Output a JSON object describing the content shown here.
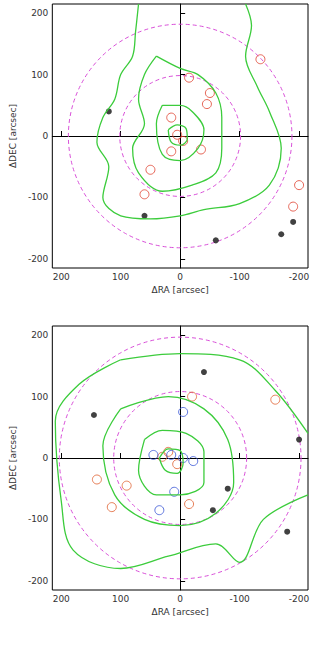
{
  "chart_data": [
    {
      "type": "scatter",
      "x_label": "ΔRA [arcsec]",
      "y_label": "ΔDEC [arcsec]",
      "xlim": [
        215,
        -215
      ],
      "ylim": [
        -215,
        215
      ],
      "xticks": [
        200,
        100,
        0,
        -100,
        -200
      ],
      "yticks": [
        -200,
        -100,
        0,
        100,
        200
      ],
      "grid": false,
      "series": [
        {
          "type": "circle",
          "color": "#d94fd9",
          "line_style": "dashed",
          "center": [
            0,
            0
          ],
          "radius": 100
        },
        {
          "type": "circle",
          "color": "#d94fd9",
          "line_style": "dashed",
          "center": [
            0,
            0
          ],
          "radius": 185
        },
        {
          "type": "line",
          "color": "#3ccc3c",
          "line_style": "solid",
          "points": [
            [
              70,
              215
            ],
            [
              75,
              170
            ],
            [
              80,
              130
            ],
            [
              100,
              100
            ],
            [
              110,
              60
            ],
            [
              130,
              30
            ],
            [
              140,
              -10
            ],
            [
              120,
              -50
            ],
            [
              130,
              -100
            ],
            [
              100,
              -130
            ],
            [
              50,
              -135
            ],
            [
              0,
              -130
            ],
            [
              -40,
              -120
            ],
            [
              -100,
              -110
            ],
            [
              -150,
              -80
            ],
            [
              -170,
              -20
            ],
            [
              -150,
              40
            ],
            [
              -130,
              80
            ],
            [
              -110,
              130
            ],
            [
              -120,
              180
            ],
            [
              -110,
              215
            ]
          ]
        },
        {
          "type": "line",
          "color": "#3ccc3c",
          "line_style": "solid",
          "points": [
            [
              40,
              130
            ],
            [
              60,
              100
            ],
            [
              70,
              60
            ],
            [
              60,
              20
            ],
            [
              80,
              -20
            ],
            [
              70,
              -60
            ],
            [
              30,
              -90
            ],
            [
              -20,
              -80
            ],
            [
              -60,
              -60
            ],
            [
              -70,
              -20
            ],
            [
              -70,
              30
            ],
            [
              -60,
              70
            ],
            [
              -30,
              100
            ],
            [
              0,
              110
            ],
            [
              40,
              130
            ]
          ]
        },
        {
          "type": "line",
          "color": "#3ccc3c",
          "line_style": "solid",
          "points": [
            [
              30,
              50
            ],
            [
              40,
              20
            ],
            [
              30,
              -30
            ],
            [
              0,
              -40
            ],
            [
              -30,
              -20
            ],
            [
              -40,
              10
            ],
            [
              -20,
              40
            ],
            [
              0,
              50
            ],
            [
              30,
              50
            ]
          ]
        },
        {
          "type": "line",
          "color": "#3ccc3c",
          "line_style": "solid",
          "points": [
            [
              20,
              10
            ],
            [
              15,
              -10
            ],
            [
              0,
              -15
            ],
            [
              -12,
              -5
            ],
            [
              -10,
              12
            ],
            [
              5,
              18
            ],
            [
              20,
              10
            ]
          ]
        },
        {
          "type": "scatter",
          "color": "#e0412f",
          "marker": "open_circle",
          "points": [
            [
              -15,
              95
            ],
            [
              -50,
              70
            ],
            [
              -45,
              52
            ],
            [
              15,
              30
            ],
            [
              5,
              2
            ],
            [
              -5,
              -8
            ],
            [
              -35,
              -22
            ],
            [
              15,
              -25
            ],
            [
              50,
              -55
            ],
            [
              60,
              -95
            ],
            [
              -135,
              125
            ],
            [
              -200,
              -80
            ],
            [
              -190,
              -115
            ]
          ]
        },
        {
          "type": "scatter",
          "color": "#111111",
          "marker": "dot",
          "points": [
            [
              60,
              -130
            ],
            [
              -190,
              -140
            ],
            [
              -170,
              -160
            ],
            [
              120,
              40
            ],
            [
              -60,
              -170
            ]
          ]
        }
      ]
    },
    {
      "type": "scatter",
      "x_label": "ΔRA [arcsec]",
      "y_label": "ΔDEC [arcsec]",
      "xlim": [
        215,
        -215
      ],
      "ylim": [
        -215,
        215
      ],
      "xticks": [
        200,
        100,
        0,
        -100,
        -200
      ],
      "yticks": [
        -200,
        -100,
        0,
        100,
        200
      ],
      "grid": false,
      "series": [
        {
          "type": "circle",
          "color": "#d94fd9",
          "line_style": "dashed",
          "center": [
            0,
            0
          ],
          "radius": 110
        },
        {
          "type": "circle",
          "color": "#d94fd9",
          "line_style": "dashed",
          "center": [
            0,
            0
          ],
          "radius": 200
        },
        {
          "type": "line",
          "color": "#3ccc3c",
          "line_style": "solid",
          "points": [
            [
              100,
              160
            ],
            [
              170,
              120
            ],
            [
              210,
              60
            ],
            [
              200,
              -70
            ],
            [
              180,
              -150
            ],
            [
              100,
              -180
            ],
            [
              20,
              -160
            ],
            [
              -60,
              -140
            ],
            [
              -100,
              -170
            ],
            [
              -140,
              -100
            ],
            [
              -215,
              -60
            ]
          ]
        },
        {
          "type": "line",
          "color": "#3ccc3c",
          "line_style": "solid",
          "points": [
            [
              -215,
              40
            ],
            [
              -160,
              110
            ],
            [
              -100,
              160
            ],
            [
              0,
              170
            ],
            [
              100,
              160
            ]
          ]
        },
        {
          "type": "line",
          "color": "#3ccc3c",
          "line_style": "solid",
          "points": [
            [
              100,
              80
            ],
            [
              130,
              20
            ],
            [
              110,
              -60
            ],
            [
              60,
              -100
            ],
            [
              0,
              -110
            ],
            [
              -60,
              -90
            ],
            [
              -90,
              -40
            ],
            [
              -80,
              30
            ],
            [
              -40,
              80
            ],
            [
              20,
              100
            ],
            [
              100,
              80
            ]
          ]
        },
        {
          "type": "line",
          "color": "#3ccc3c",
          "line_style": "solid",
          "points": [
            [
              60,
              30
            ],
            [
              70,
              -20
            ],
            [
              40,
              -60
            ],
            [
              0,
              -60
            ],
            [
              -40,
              -40
            ],
            [
              -40,
              10
            ],
            [
              -10,
              40
            ],
            [
              30,
              45
            ],
            [
              60,
              30
            ]
          ]
        },
        {
          "type": "line",
          "color": "#3ccc3c",
          "line_style": "solid",
          "points": [
            [
              35,
              0
            ],
            [
              25,
              -20
            ],
            [
              5,
              -25
            ],
            [
              -5,
              -8
            ],
            [
              0,
              12
            ],
            [
              20,
              15
            ],
            [
              35,
              0
            ]
          ]
        },
        {
          "type": "scatter",
          "color": "#e0602f",
          "marker": "open_circle",
          "points": [
            [
              -160,
              95
            ],
            [
              -20,
              100
            ],
            [
              140,
              -35
            ],
            [
              90,
              -45
            ],
            [
              115,
              -80
            ],
            [
              5,
              -10
            ],
            [
              20,
              10
            ],
            [
              -15,
              -75
            ],
            [
              30,
              2
            ]
          ]
        },
        {
          "type": "scatter",
          "color": "#3a56d6",
          "marker": "open_circle",
          "points": [
            [
              -5,
              75
            ],
            [
              45,
              5
            ],
            [
              15,
              5
            ],
            [
              -5,
              0
            ],
            [
              -22,
              -5
            ],
            [
              10,
              -55
            ],
            [
              35,
              -85
            ]
          ]
        },
        {
          "type": "scatter",
          "color": "#111111",
          "marker": "dot",
          "points": [
            [
              -55,
              -85
            ],
            [
              -80,
              -50
            ],
            [
              145,
              70
            ],
            [
              -200,
              30
            ],
            [
              -180,
              -120
            ],
            [
              -40,
              140
            ]
          ]
        }
      ]
    }
  ]
}
